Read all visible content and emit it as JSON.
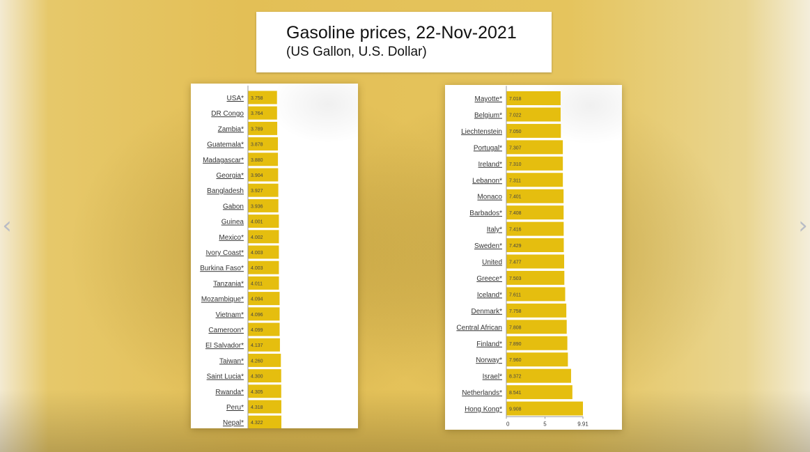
{
  "title": {
    "line1": "Gasoline prices, 22-Nov-2021",
    "line2": "(US Gallon, U.S. Dollar)"
  },
  "nav": {
    "prev_icon": "chevron-left-icon",
    "next_icon": "chevron-right-icon",
    "arrow_color": "#b9bcc6"
  },
  "colors": {
    "bar": "#e5be0f",
    "panel": "#ffffff"
  },
  "chart_data": [
    {
      "type": "bar",
      "orientation": "horizontal",
      "categories": [
        "USA*",
        "DR Congo",
        "Zambia*",
        "Guatemala*",
        "Madagascar*",
        "Georgia*",
        "Bangladesh",
        "Gabon",
        "Guinea",
        "Mexico*",
        "Ivory Coast*",
        "Burkina Faso*",
        "Tanzania*",
        "Mozambique*",
        "Vietnam*",
        "Cameroon*",
        "El Salvador*",
        "Taiwan*",
        "Saint Lucia*",
        "Rwanda*",
        "Peru*",
        "Nepal*"
      ],
      "values": [
        3.758,
        3.764,
        3.789,
        3.878,
        3.88,
        3.904,
        3.927,
        3.936,
        4.001,
        4.002,
        4.003,
        4.003,
        4.011,
        4.094,
        4.096,
        4.099,
        4.137,
        4.26,
        4.3,
        4.305,
        4.318,
        4.322
      ],
      "value_labels": [
        "3.758",
        "3.764",
        "3.789",
        "3.878",
        "3.880",
        "3.904",
        "3.927",
        "3.936",
        "4.001",
        "4.002",
        "4.003",
        "4.003",
        "4.011",
        "4.094",
        "4.096",
        "4.099",
        "4.137",
        "4.260",
        "4.300",
        "4.305",
        "4.318",
        "4.322"
      ],
      "xlim": [
        0,
        9.908
      ],
      "grid": false,
      "legend": "none"
    },
    {
      "type": "bar",
      "orientation": "horizontal",
      "categories": [
        "Mayotte*",
        "Belgium*",
        "Liechtenstein",
        "Portugal*",
        "Ireland*",
        "Lebanon*",
        "Monaco",
        "Barbados*",
        "Italy*",
        "Sweden*",
        "United",
        "Greece*",
        "Iceland*",
        "Denmark*",
        "Central African",
        "Finland*",
        "Norway*",
        "Israel*",
        "Netherlands*",
        "Hong Kong*"
      ],
      "values": [
        7.018,
        7.022,
        7.05,
        7.307,
        7.31,
        7.311,
        7.401,
        7.408,
        7.416,
        7.429,
        7.477,
        7.503,
        7.611,
        7.758,
        7.808,
        7.89,
        7.96,
        8.372,
        8.541,
        9.908
      ],
      "value_labels": [
        "7.018",
        "7.022",
        "7.050",
        "7.307",
        "7.310",
        "7.311",
        "7.401",
        "7.408",
        "7.416",
        "7.429",
        "7.477",
        "7.503",
        "7.611",
        "7.758",
        "7.808",
        "7.890",
        "7.960",
        "8.372",
        "8.541",
        "9.908"
      ],
      "xlim": [
        0,
        9.908
      ],
      "xticks": [
        "0",
        "5",
        "9.91"
      ],
      "xtick_values": [
        0,
        5,
        9.908
      ],
      "grid": false,
      "legend": "none"
    }
  ]
}
